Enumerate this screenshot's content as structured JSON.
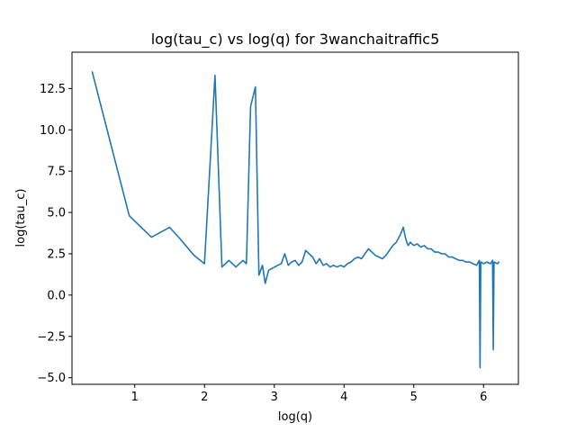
{
  "chart_data": {
    "type": "line",
    "title": "log(tau_c) vs log(q) for 3wanchaitraffic5",
    "xlabel": "log(q)",
    "ylabel": "log(tau_c)",
    "xlim": [
      0.1,
      6.5
    ],
    "ylim": [
      -5.4,
      14.7
    ],
    "grid": false,
    "legend": "none",
    "x_ticks": [
      {
        "value": 1,
        "label": "1"
      },
      {
        "value": 2,
        "label": "2"
      },
      {
        "value": 3,
        "label": "3"
      },
      {
        "value": 4,
        "label": "4"
      },
      {
        "value": 5,
        "label": "5"
      },
      {
        "value": 6,
        "label": "6"
      }
    ],
    "y_ticks": [
      {
        "value": -5.0,
        "label": "−5.0"
      },
      {
        "value": -2.5,
        "label": "−2.5"
      },
      {
        "value": 0.0,
        "label": "0.0"
      },
      {
        "value": 2.5,
        "label": "2.5"
      },
      {
        "value": 5.0,
        "label": "5.0"
      },
      {
        "value": 7.5,
        "label": "7.5"
      },
      {
        "value": 10.0,
        "label": "10.0"
      },
      {
        "value": 12.5,
        "label": "12.5"
      }
    ],
    "series": [
      {
        "color": "#1f77b4",
        "x": [
          0.39,
          0.92,
          1.24,
          1.5,
          1.65,
          1.85,
          2.0,
          2.15,
          2.25,
          2.35,
          2.45,
          2.55,
          2.6,
          2.66,
          2.73,
          2.78,
          2.83,
          2.87,
          2.92,
          3.05,
          3.1,
          3.15,
          3.2,
          3.25,
          3.3,
          3.35,
          3.4,
          3.45,
          3.5,
          3.55,
          3.6,
          3.65,
          3.7,
          3.75,
          3.8,
          3.85,
          3.9,
          3.95,
          4.0,
          4.05,
          4.1,
          4.15,
          4.2,
          4.25,
          4.3,
          4.35,
          4.4,
          4.45,
          4.5,
          4.55,
          4.6,
          4.65,
          4.7,
          4.75,
          4.8,
          4.85,
          4.88,
          4.9,
          4.92,
          4.95,
          5.0,
          5.05,
          5.1,
          5.15,
          5.2,
          5.25,
          5.3,
          5.35,
          5.4,
          5.45,
          5.5,
          5.55,
          5.6,
          5.65,
          5.7,
          5.75,
          5.8,
          5.85,
          5.9,
          5.94,
          5.95,
          5.96,
          6.0,
          6.05,
          6.1,
          6.13,
          6.14,
          6.15,
          6.2,
          6.22
        ],
        "y": [
          13.5,
          4.8,
          3.5,
          4.1,
          3.4,
          2.4,
          1.9,
          13.3,
          1.7,
          2.1,
          1.7,
          2.1,
          1.9,
          11.4,
          12.6,
          1.2,
          1.8,
          0.7,
          1.5,
          1.8,
          1.9,
          2.5,
          1.8,
          2.0,
          2.1,
          1.8,
          2.0,
          2.7,
          2.5,
          2.3,
          1.9,
          2.2,
          1.8,
          1.9,
          1.7,
          1.8,
          1.7,
          1.8,
          1.7,
          1.9,
          2.0,
          2.2,
          2.3,
          2.2,
          2.5,
          2.8,
          2.6,
          2.4,
          2.3,
          2.2,
          2.4,
          2.7,
          3.0,
          3.2,
          3.6,
          4.1,
          3.5,
          3.2,
          3.0,
          3.2,
          3.0,
          3.1,
          2.9,
          3.0,
          2.8,
          2.8,
          2.6,
          2.6,
          2.5,
          2.5,
          2.3,
          2.3,
          2.2,
          2.1,
          2.1,
          2.0,
          2.0,
          1.9,
          1.8,
          2.1,
          -4.4,
          2.0,
          1.9,
          2.0,
          1.9,
          2.1,
          -3.3,
          2.0,
          1.9,
          2.0
        ]
      }
    ]
  }
}
